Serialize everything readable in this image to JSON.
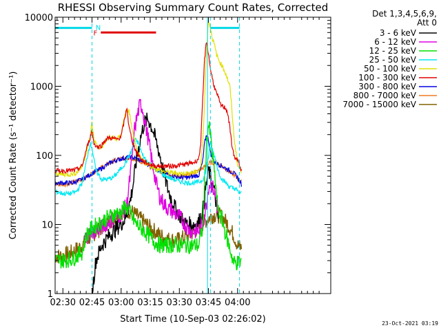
{
  "chart_data": {
    "type": "line",
    "title": "RHESSI Observing Summary Count Rates, Corrected",
    "xlabel": "Start Time (10-Sep-03 02:26:02)",
    "ylabel": "Corrected Count Rate (s⁻¹ detector⁻¹)",
    "yscale": "log",
    "ylim": [
      1,
      10000
    ],
    "xlim": [
      26,
      168
    ],
    "x_unit": "minutes after 02:00 UT",
    "yticks": [
      {
        "value": 1,
        "label": "1"
      },
      {
        "value": 10,
        "label": "10"
      },
      {
        "value": 100,
        "label": "100"
      },
      {
        "value": 1000,
        "label": "1000"
      },
      {
        "value": 10000,
        "label": "10000"
      }
    ],
    "xticks": [
      {
        "value": 30,
        "label": "02:30"
      },
      {
        "value": 45,
        "label": "02:45"
      },
      {
        "value": 60,
        "label": "03:00"
      },
      {
        "value": 75,
        "label": "03:15"
      },
      {
        "value": 90,
        "label": "03:30"
      },
      {
        "value": 105,
        "label": "03:45"
      },
      {
        "value": 120,
        "label": "04:00"
      }
    ],
    "legend_title": "Det 1,3,4,5,6,9,",
    "legend_subtitle": "Att 0",
    "legend_position": "right",
    "timestamp": "23-Oct-2021 03:19",
    "annotations": {
      "night_label": "N",
      "night_intervals": [
        [
          26,
          45
        ],
        [
          106,
          121
        ]
      ],
      "night_level": 7000,
      "night_edges": [
        45,
        106,
        121
      ],
      "flare_label": "F",
      "flare_interval": [
        46,
        78
      ],
      "flare_level": 6000,
      "saa_line_x": 104.5
    },
    "series": [
      {
        "name": "3 - 6 keV",
        "color": "#000000",
        "x": [
          45,
          47,
          50,
          54,
          58,
          62,
          64,
          66,
          68,
          70,
          72,
          74,
          76,
          78,
          80,
          82,
          84,
          86,
          88,
          90,
          92,
          94,
          96,
          98,
          100,
          102,
          103,
          104,
          105,
          106,
          107,
          108,
          109,
          110
        ],
        "y": [
          1,
          3,
          5,
          7,
          9,
          12,
          18,
          35,
          90,
          180,
          300,
          330,
          250,
          160,
          100,
          55,
          33,
          23,
          17,
          14,
          11,
          10,
          10,
          10,
          11,
          15,
          25,
          40,
          60,
          50,
          40,
          30,
          20,
          12
        ]
      },
      {
        "name": "6 - 12 keV",
        "color": "#e000e0",
        "x": [
          41,
          43,
          45,
          47,
          50,
          54,
          58,
          61,
          63,
          65,
          67,
          69,
          70,
          71,
          72,
          74,
          76,
          78,
          80,
          82,
          84,
          86,
          88,
          90,
          92,
          94,
          96,
          98,
          100,
          102,
          103,
          104,
          105,
          106,
          107,
          108,
          109,
          110
        ],
        "y": [
          6,
          7,
          8,
          8,
          9,
          11,
          13,
          15,
          20,
          60,
          250,
          450,
          560,
          480,
          330,
          170,
          80,
          40,
          25,
          20,
          17,
          16,
          14,
          13,
          11,
          9,
          8,
          8,
          8,
          10,
          14,
          20,
          35,
          40,
          35,
          30,
          22,
          15
        ]
      },
      {
        "name": "12 - 25 keV",
        "color": "#00e000",
        "x": [
          26,
          30,
          35,
          40,
          42,
          45,
          48,
          52,
          56,
          60,
          62,
          64,
          66,
          68,
          70,
          72,
          74,
          76,
          78,
          80,
          82,
          84,
          88,
          92,
          96,
          100,
          102,
          103,
          104,
          105,
          106,
          107,
          108,
          109,
          110,
          112,
          114,
          116,
          118,
          120,
          122
        ],
        "y": [
          3,
          3,
          3.2,
          4,
          7,
          9,
          10,
          12,
          14,
          15,
          18,
          16,
          12,
          10,
          9,
          8,
          7,
          6,
          5.5,
          5,
          5,
          5,
          5,
          5,
          5,
          5,
          9,
          40,
          150,
          280,
          200,
          100,
          60,
          30,
          15,
          12,
          7,
          4.5,
          2.8,
          2.8,
          2.9
        ]
      },
      {
        "name": "25 - 50 keV",
        "color": "#00e8f0",
        "x": [
          26,
          30,
          34,
          37,
          40,
          42,
          44,
          45,
          47,
          50,
          53,
          56,
          59,
          61,
          63,
          65,
          67,
          69,
          71,
          73,
          75,
          78,
          82,
          86,
          90,
          94,
          98,
          101,
          102,
          103,
          104,
          105,
          106,
          107,
          108,
          109,
          110,
          112,
          114,
          116,
          118,
          119,
          120,
          122
        ],
        "y": [
          30,
          28,
          28,
          30,
          40,
          80,
          150,
          130,
          60,
          45,
          45,
          48,
          60,
          70,
          85,
          110,
          170,
          150,
          100,
          85,
          75,
          62,
          52,
          46,
          42,
          40,
          40,
          42,
          45,
          50,
          70,
          95,
          150,
          120,
          100,
          80,
          60,
          45,
          40,
          35,
          33,
          33,
          30,
          28
        ]
      },
      {
        "name": "50 - 100 keV",
        "color": "#e0e000",
        "x": [
          26,
          30,
          34,
          37,
          40,
          42,
          44,
          45,
          46,
          48,
          50,
          52,
          54,
          56,
          58,
          60,
          62,
          64,
          66,
          68,
          70,
          72,
          75,
          78,
          82,
          86,
          90,
          94,
          98,
          100,
          101,
          102,
          103,
          104,
          105,
          106,
          107,
          108,
          109,
          110,
          111,
          112,
          114,
          116,
          117,
          118,
          119,
          120,
          122
        ],
        "y": [
          55,
          53,
          53,
          56,
          70,
          110,
          180,
          300,
          170,
          130,
          130,
          160,
          180,
          180,
          170,
          200,
          400,
          450,
          210,
          120,
          90,
          80,
          72,
          65,
          58,
          56,
          55,
          55,
          57,
          60,
          70,
          150,
          600,
          3500,
          9000,
          7000,
          5000,
          4000,
          3000,
          2500,
          2200,
          2000,
          1500,
          1000,
          500,
          200,
          120,
          70,
          60
        ]
      },
      {
        "name": "100 - 300 keV",
        "color": "#e00000",
        "x": [
          26,
          30,
          34,
          37,
          40,
          42,
          44,
          45,
          46,
          48,
          50,
          52,
          54,
          56,
          58,
          60,
          62,
          63,
          64,
          66,
          68,
          70,
          72,
          75,
          78,
          82,
          86,
          90,
          94,
          98,
          100,
          101,
          102,
          103,
          104,
          105,
          106,
          107,
          108,
          109,
          110,
          111,
          112,
          113,
          114,
          115,
          116,
          117,
          118,
          119,
          120,
          122
        ],
        "y": [
          60,
          60,
          60,
          62,
          70,
          120,
          180,
          230,
          150,
          130,
          140,
          170,
          180,
          175,
          170,
          190,
          350,
          500,
          260,
          150,
          110,
          90,
          80,
          74,
          70,
          70,
          70,
          72,
          75,
          80,
          90,
          150,
          600,
          2500,
          4500,
          3000,
          1800,
          1300,
          1000,
          800,
          700,
          550,
          520,
          500,
          480,
          400,
          250,
          150,
          100,
          90,
          85,
          60
        ]
      },
      {
        "name": "300 - 800 keV",
        "color": "#0000e0",
        "x": [
          26,
          30,
          35,
          40,
          45,
          50,
          55,
          60,
          65,
          70,
          75,
          80,
          85,
          90,
          95,
          100,
          102,
          103,
          104,
          105,
          106,
          108,
          110,
          112,
          114,
          116,
          118,
          120,
          122
        ],
        "y": [
          40,
          40,
          40,
          45,
          55,
          65,
          80,
          90,
          95,
          85,
          72,
          60,
          52,
          48,
          48,
          52,
          80,
          150,
          200,
          170,
          110,
          80,
          75,
          70,
          65,
          60,
          55,
          48,
          38
        ]
      },
      {
        "name": "800 - 7000 keV",
        "color": "#f07820",
        "x": [
          26,
          30,
          35,
          40,
          45,
          50,
          55,
          60,
          65,
          70,
          75,
          80,
          85,
          90,
          95,
          100,
          103,
          106,
          109,
          112,
          115,
          118,
          120,
          122
        ],
        "y": [
          38,
          38,
          40,
          45,
          55,
          67,
          80,
          90,
          92,
          82,
          68,
          58,
          52,
          50,
          52,
          60,
          68,
          78,
          80,
          70,
          60,
          52,
          46,
          42
        ]
      },
      {
        "name": "7000 - 15000 keV",
        "color": "#806000",
        "x": [
          26,
          30,
          35,
          40,
          45,
          50,
          55,
          60,
          63,
          66,
          70,
          75,
          80,
          85,
          90,
          95,
          100,
          103,
          106,
          109,
          112,
          115,
          118,
          120,
          122
        ],
        "y": [
          3.5,
          3.5,
          4,
          5,
          7,
          9,
          12,
          15,
          16,
          15,
          12,
          9,
          7,
          6,
          6,
          7,
          9,
          11,
          13,
          14,
          13,
          10,
          7,
          5,
          4.5
        ]
      }
    ]
  }
}
